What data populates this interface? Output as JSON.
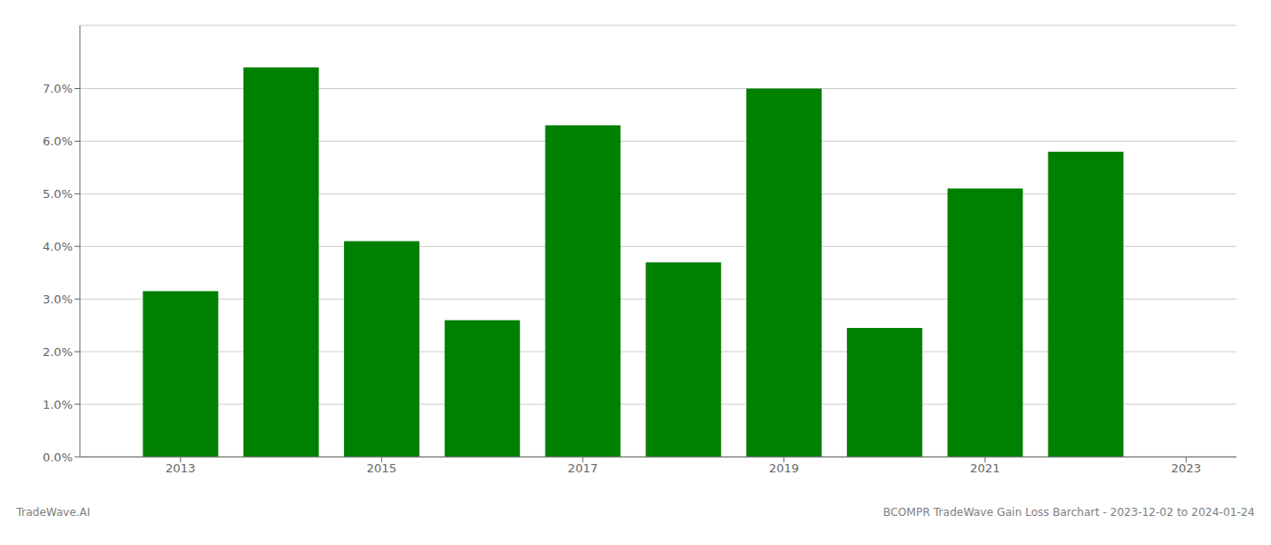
{
  "chart_data": {
    "type": "bar",
    "x": [
      2013,
      2014,
      2015,
      2016,
      2017,
      2018,
      2019,
      2020,
      2021,
      2022
    ],
    "values": [
      0.0315,
      0.074,
      0.041,
      0.026,
      0.063,
      0.037,
      0.07,
      0.0245,
      0.051,
      0.058
    ],
    "color": "#008000",
    "xlim": [
      2012.0,
      2023.5
    ],
    "xticks": [
      2013,
      2015,
      2017,
      2019,
      2021,
      2023
    ],
    "ylim": [
      0.0,
      0.082
    ],
    "yticks": [
      {
        "value": 0.0,
        "label": "0.0%"
      },
      {
        "value": 0.01,
        "label": "1.0%"
      },
      {
        "value": 0.02,
        "label": "2.0%"
      },
      {
        "value": 0.03,
        "label": "3.0%"
      },
      {
        "value": 0.04,
        "label": "4.0%"
      },
      {
        "value": 0.05,
        "label": "5.0%"
      },
      {
        "value": 0.06,
        "label": "6.0%"
      },
      {
        "value": 0.07,
        "label": "7.0%"
      }
    ],
    "grid": true,
    "annotations": [
      "TradeWave.AI",
      "BCOMPR TradeWave Gain Loss Barchart - 2023-12-02 to 2024-01-24"
    ]
  }
}
